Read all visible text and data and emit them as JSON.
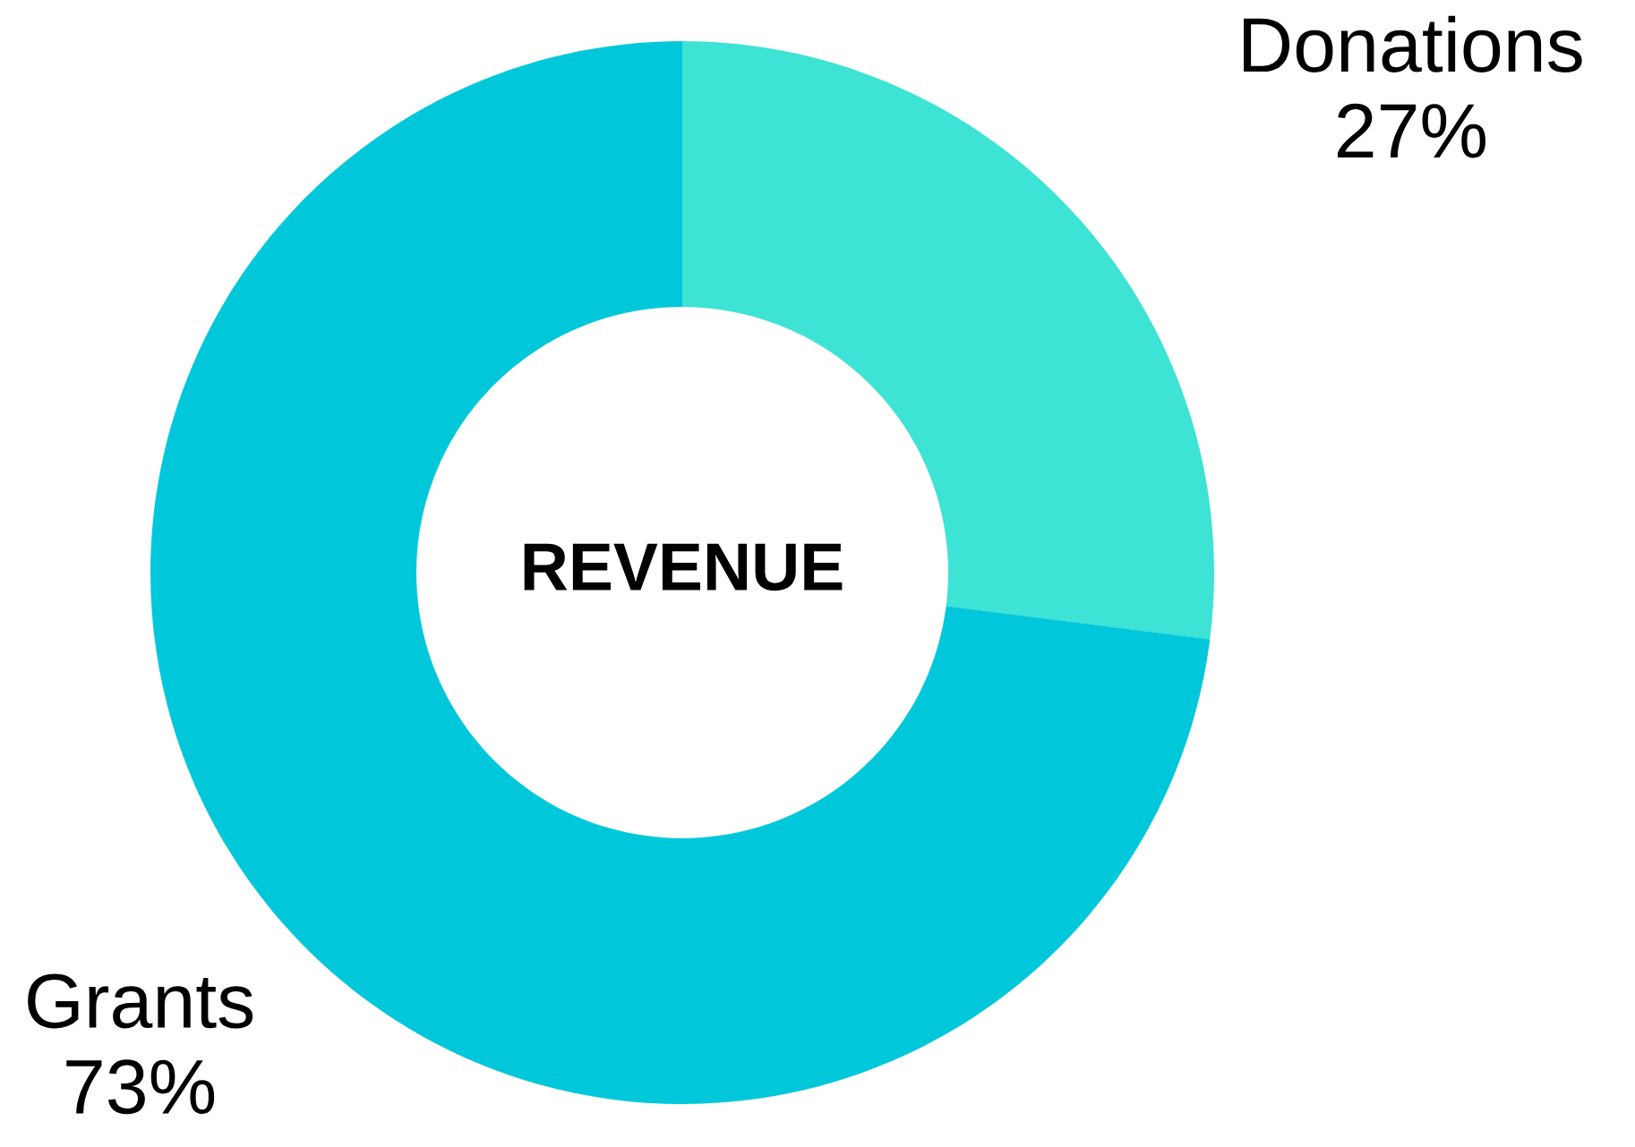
{
  "chart_data": {
    "type": "donut",
    "title": "REVENUE",
    "categories": [
      "Donations",
      "Grants"
    ],
    "values": [
      27,
      73
    ],
    "colors": [
      "#3de3d4",
      "#00c8da"
    ],
    "value_labels": [
      "27%",
      "73%"
    ],
    "legend": false
  }
}
